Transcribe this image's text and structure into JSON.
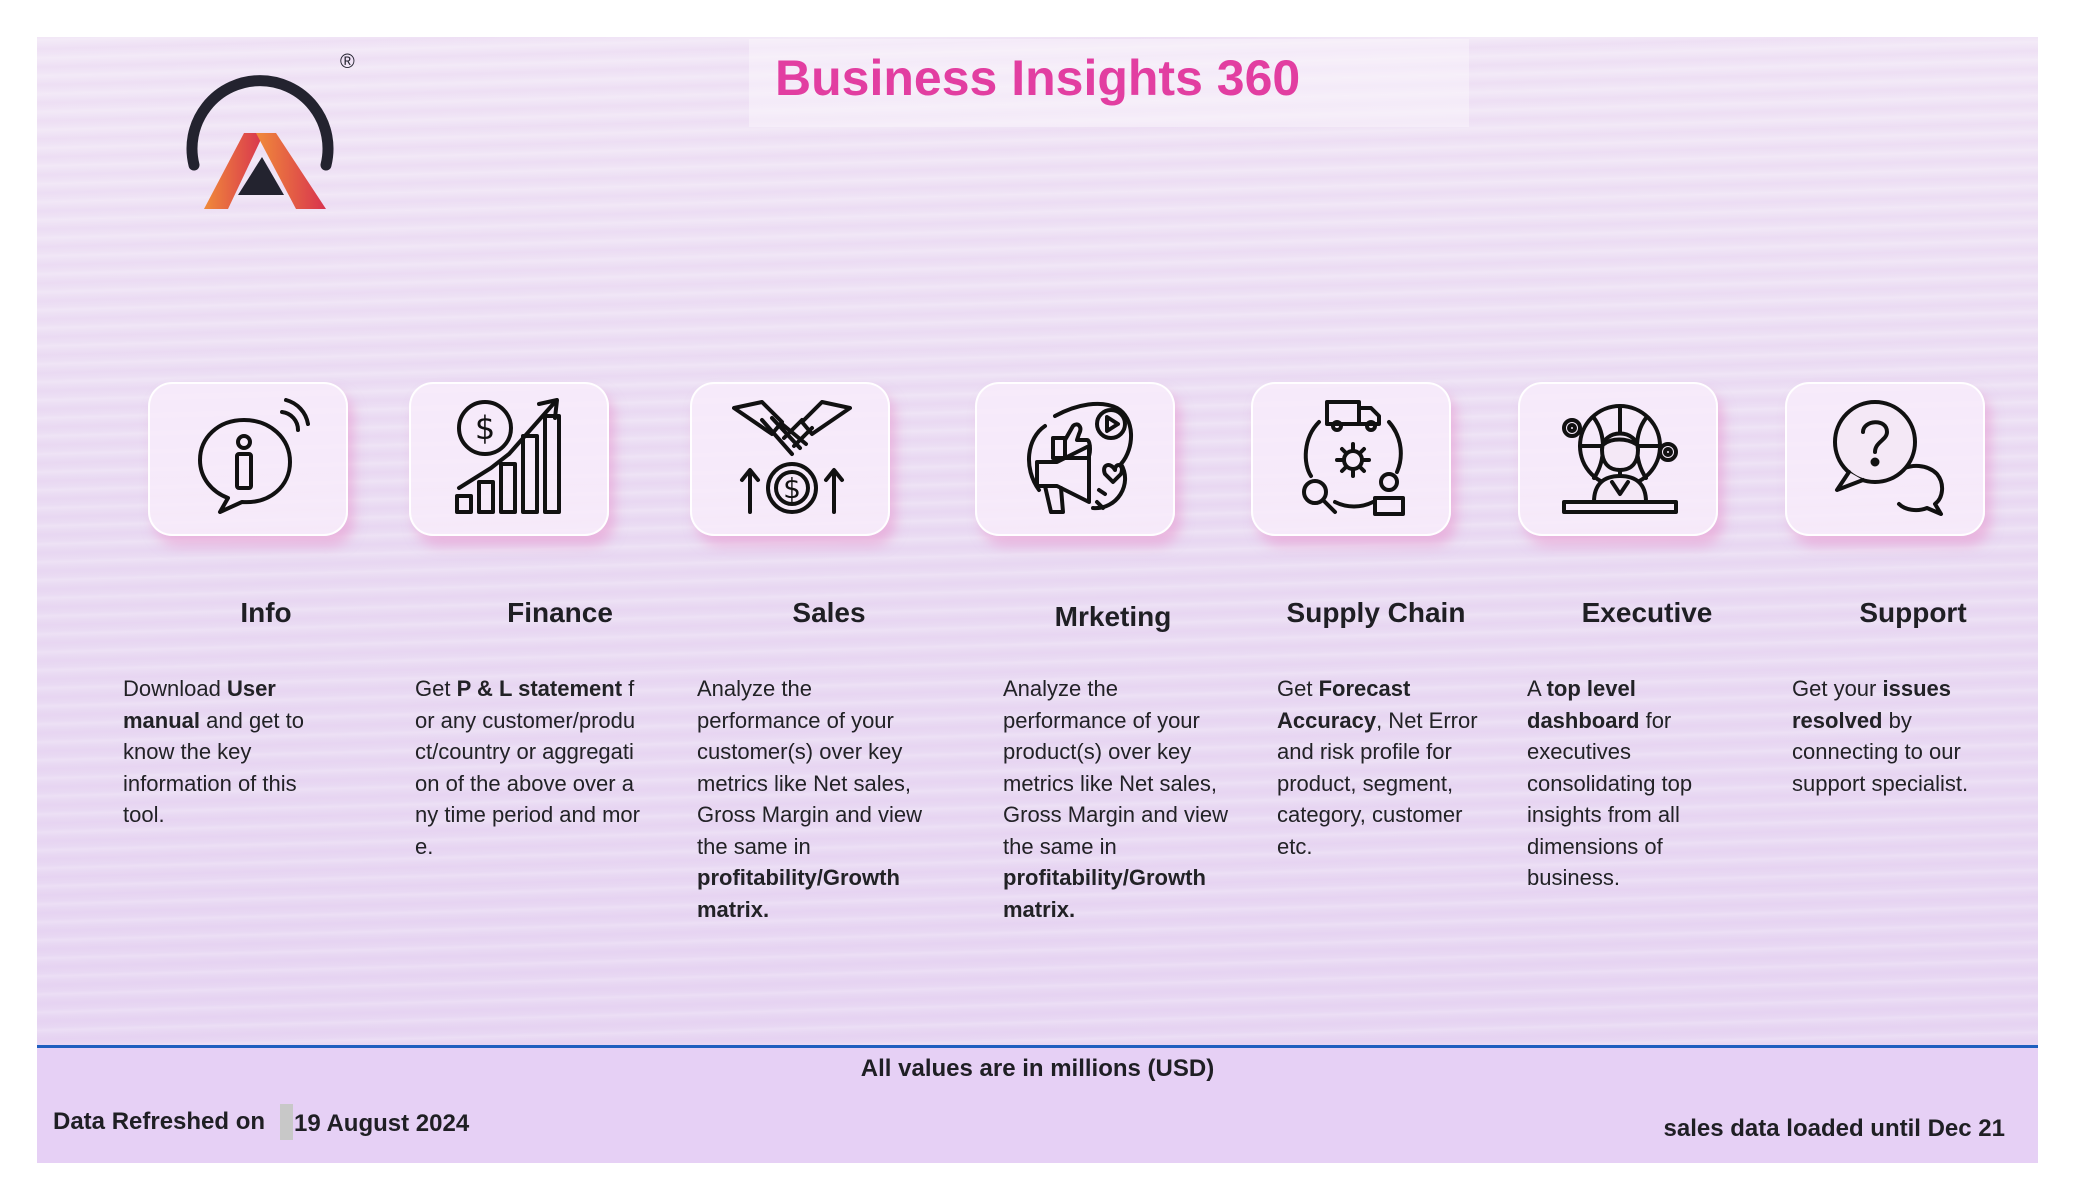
{
  "header": {
    "title": "Business Insights 360",
    "logo_mark": "®"
  },
  "sections": [
    {
      "id": "info",
      "icon": "info-icon",
      "title": "Info",
      "parts": [
        [
          "Download ",
          false
        ],
        [
          "User manual",
          true
        ],
        [
          " and get to know the key information of this tool.",
          false
        ]
      ]
    },
    {
      "id": "finance",
      "icon": "finance-chart-icon",
      "title": "Finance",
      "parts": [
        [
          "Get ",
          false
        ],
        [
          "P & L statement",
          true
        ],
        [
          " for any customer/product/country or aggregation of the above over any time period and more.",
          false
        ]
      ]
    },
    {
      "id": "sales",
      "icon": "handshake-icon",
      "title": "Sales",
      "parts": [
        [
          "Analyze the performance of your customer(s) over key metrics like Net sales, Gross Margin and view the same in ",
          false
        ],
        [
          "profitability/Growth matrix.",
          true
        ]
      ]
    },
    {
      "id": "marketing",
      "icon": "megaphone-icon",
      "title": "Mrketing",
      "parts": [
        [
          "Analyze the performance of your product(s) over key metrics like Net sales, Gross Margin and view the same in ",
          false
        ],
        [
          "profitability/Growth matrix.",
          true
        ]
      ]
    },
    {
      "id": "supply-chain",
      "icon": "supply-chain-icon",
      "title": "Supply Chain",
      "parts": [
        [
          "Get ",
          false
        ],
        [
          "Forecast Accuracy",
          true
        ],
        [
          ", Net Error and risk profile for product, segment, category, customer etc.",
          false
        ]
      ]
    },
    {
      "id": "executive",
      "icon": "executive-icon",
      "title": "Executive",
      "parts": [
        [
          "A ",
          false
        ],
        [
          "top level dashboard",
          true
        ],
        [
          " for executives consolidating top insights from all dimensions of business.",
          false
        ]
      ]
    },
    {
      "id": "support",
      "icon": "support-chat-icon",
      "title": "Support",
      "parts": [
        [
          "Get your ",
          false
        ],
        [
          "issues resolved",
          true
        ],
        [
          " by connecting to our support specialist.",
          false
        ]
      ]
    }
  ],
  "footer": {
    "units_note": "All values are in millions (USD)",
    "refresh_label": "Data Refreshed on",
    "refresh_date": "19 August 2024",
    "loaded_note": "sales data loaded until Dec 21"
  },
  "colors": {
    "title": "#e23ea1",
    "logo_gradient_start": "#f08a3a",
    "logo_gradient_end": "#d8334f",
    "logo_ring": "#23232f",
    "footer_rule": "#1f5fbf",
    "page_background": "#ebdcf4",
    "card_shadow": "#e896cd"
  }
}
